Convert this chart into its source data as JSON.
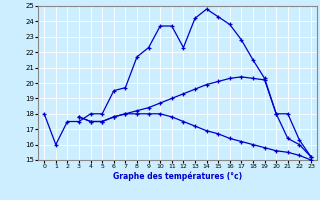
{
  "xlabel": "Graphe des températures (°c)",
  "bg_color": "#cceeff",
  "grid_color": "#ffffff",
  "line_color": "#0000cc",
  "xlim": [
    -0.5,
    23.5
  ],
  "ylim": [
    15,
    25
  ],
  "yticks": [
    15,
    16,
    17,
    18,
    19,
    20,
    21,
    22,
    23,
    24,
    25
  ],
  "xticks": [
    0,
    1,
    2,
    3,
    4,
    5,
    6,
    7,
    8,
    9,
    10,
    11,
    12,
    13,
    14,
    15,
    16,
    17,
    18,
    19,
    20,
    21,
    22,
    23
  ],
  "series": [
    {
      "x": [
        0,
        1,
        2,
        3,
        4,
        5,
        6,
        7,
        8,
        9,
        10,
        11,
        12,
        13,
        14,
        15,
        16,
        17,
        18,
        19,
        20,
        21,
        22,
        23
      ],
      "y": [
        18.0,
        16.0,
        17.5,
        17.5,
        18.0,
        18.0,
        19.5,
        19.7,
        21.7,
        22.3,
        23.7,
        23.7,
        22.3,
        24.2,
        24.8,
        24.3,
        23.8,
        22.8,
        21.5,
        20.3,
        18.0,
        16.4,
        16.0,
        15.2
      ]
    },
    {
      "x": [
        3,
        4,
        5,
        6,
        7,
        8,
        9,
        10,
        11,
        12,
        13,
        14,
        15,
        16,
        17,
        18,
        19,
        20,
        21,
        22,
        23
      ],
      "y": [
        17.8,
        17.5,
        17.5,
        17.8,
        18.0,
        18.2,
        18.4,
        18.7,
        19.0,
        19.3,
        19.6,
        19.9,
        20.1,
        20.3,
        20.4,
        20.3,
        20.2,
        18.0,
        18.0,
        16.3,
        15.2
      ]
    },
    {
      "x": [
        3,
        4,
        5,
        6,
        7,
        8,
        9,
        10,
        11,
        12,
        13,
        14,
        15,
        16,
        17,
        18,
        19,
        20,
        21,
        22,
        23
      ],
      "y": [
        17.8,
        17.5,
        17.5,
        17.8,
        18.0,
        18.0,
        18.0,
        18.0,
        17.8,
        17.5,
        17.2,
        16.9,
        16.7,
        16.4,
        16.2,
        16.0,
        15.8,
        15.6,
        15.5,
        15.3,
        15.0
      ]
    }
  ]
}
